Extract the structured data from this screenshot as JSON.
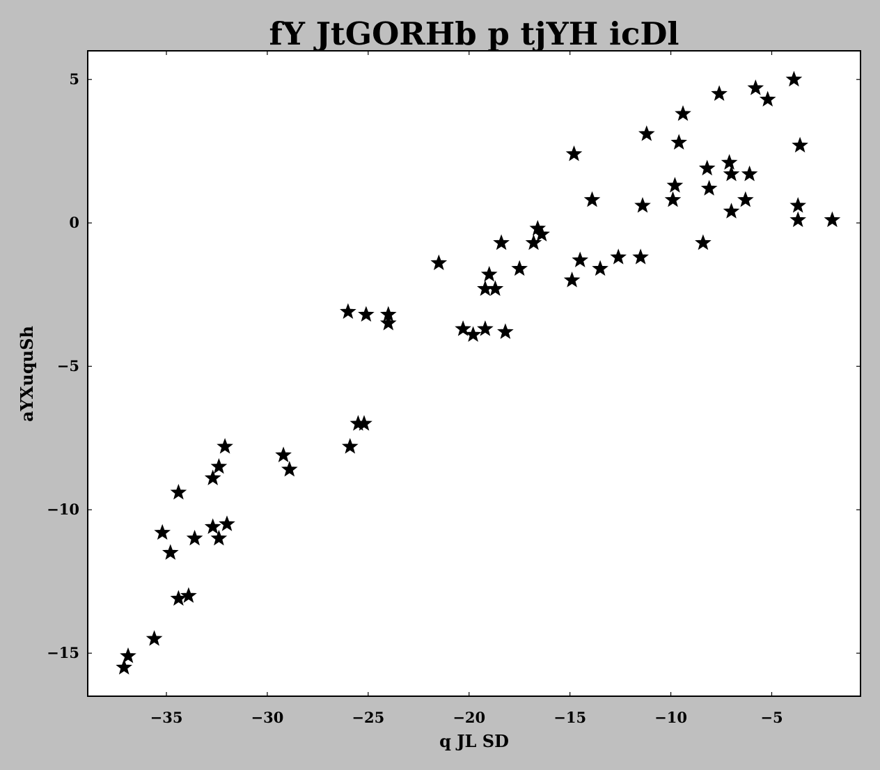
{
  "chart_data": {
    "type": "scatter",
    "title": "fY JtGORHb p tjYH icDl",
    "xlabel": "q JL SD",
    "ylabel": "aYXuquSh",
    "xlim": [
      -38.9,
      -0.6
    ],
    "ylim": [
      -16.5,
      6.0
    ],
    "xticks": [
      -35,
      -30,
      -25,
      -20,
      -15,
      -10,
      -5
    ],
    "yticks": [
      5,
      0,
      -5,
      -10,
      -15
    ],
    "xtick_labels": [
      "−35",
      "−30",
      "−25",
      "−20",
      "−15",
      "−10",
      "−5"
    ],
    "ytick_labels": [
      "5",
      "0",
      "−5",
      "−10",
      "−15"
    ],
    "marker": "star",
    "marker_color": "#000000",
    "background": "#ffffff",
    "grid": false,
    "points": [
      [
        -37.1,
        -15.5
      ],
      [
        -36.9,
        -15.1
      ],
      [
        -35.6,
        -14.5
      ],
      [
        -34.4,
        -13.1
      ],
      [
        -33.9,
        -13.0
      ],
      [
        -35.2,
        -10.8
      ],
      [
        -34.8,
        -11.5
      ],
      [
        -34.4,
        -9.4
      ],
      [
        -33.6,
        -11.0
      ],
      [
        -32.7,
        -10.6
      ],
      [
        -32.4,
        -11.0
      ],
      [
        -32.0,
        -10.5
      ],
      [
        -32.7,
        -8.9
      ],
      [
        -32.4,
        -8.5
      ],
      [
        -32.1,
        -7.8
      ],
      [
        -29.2,
        -8.1
      ],
      [
        -28.9,
        -8.6
      ],
      [
        -25.9,
        -7.8
      ],
      [
        -25.5,
        -7.0
      ],
      [
        -25.2,
        -7.0
      ],
      [
        -26.0,
        -3.1
      ],
      [
        -25.1,
        -3.2
      ],
      [
        -24.0,
        -3.2
      ],
      [
        -24.0,
        -3.5
      ],
      [
        -21.5,
        -1.4
      ],
      [
        -20.3,
        -3.7
      ],
      [
        -19.8,
        -3.9
      ],
      [
        -19.2,
        -3.7
      ],
      [
        -18.2,
        -3.8
      ],
      [
        -19.2,
        -2.3
      ],
      [
        -18.7,
        -2.3
      ],
      [
        -19.0,
        -1.8
      ],
      [
        -18.4,
        -0.7
      ],
      [
        -17.5,
        -1.6
      ],
      [
        -16.8,
        -0.7
      ],
      [
        -16.6,
        -0.2
      ],
      [
        -16.4,
        -0.4
      ],
      [
        -14.9,
        -2.0
      ],
      [
        -14.5,
        -1.3
      ],
      [
        -13.5,
        -1.6
      ],
      [
        -12.6,
        -1.2
      ],
      [
        -11.5,
        -1.2
      ],
      [
        -14.8,
        2.4
      ],
      [
        -13.9,
        0.8
      ],
      [
        -11.4,
        0.6
      ],
      [
        -11.2,
        3.1
      ],
      [
        -9.9,
        0.8
      ],
      [
        -9.8,
        1.3
      ],
      [
        -9.6,
        2.8
      ],
      [
        -9.4,
        3.8
      ],
      [
        -8.4,
        -0.7
      ],
      [
        -8.2,
        1.9
      ],
      [
        -8.1,
        1.2
      ],
      [
        -7.1,
        2.1
      ],
      [
        -7.0,
        1.7
      ],
      [
        -7.0,
        0.4
      ],
      [
        -6.3,
        0.8
      ],
      [
        -6.1,
        1.7
      ],
      [
        -7.6,
        4.5
      ],
      [
        -5.8,
        4.7
      ],
      [
        -5.2,
        4.3
      ],
      [
        -3.9,
        5.0
      ],
      [
        -3.6,
        2.7
      ],
      [
        -3.7,
        0.6
      ],
      [
        -3.7,
        0.1
      ],
      [
        -2.0,
        0.1
      ]
    ]
  }
}
